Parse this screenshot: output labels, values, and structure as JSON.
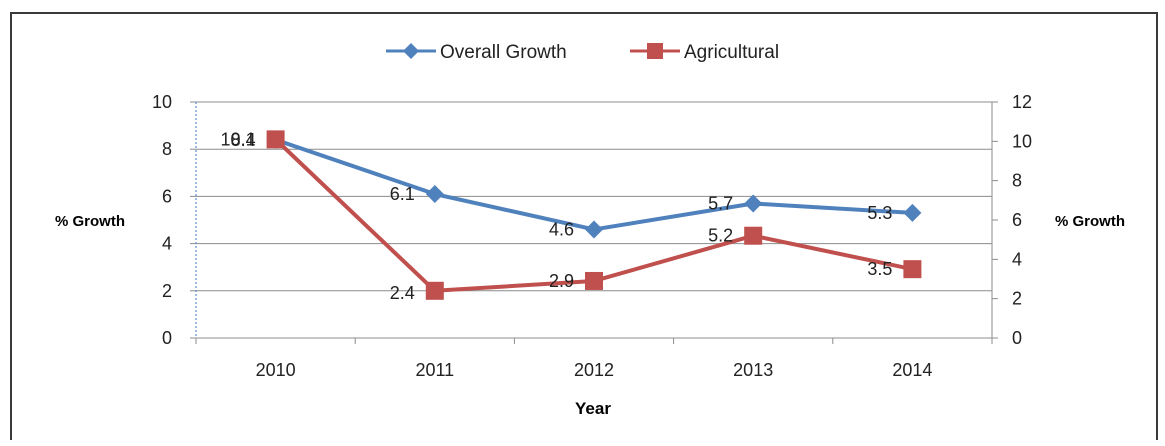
{
  "chart_data": {
    "type": "line",
    "categories": [
      "2010",
      "2011",
      "2012",
      "2013",
      "2014"
    ],
    "series": [
      {
        "name": "Overall Growth",
        "axis": "left",
        "color": "#4F81BD",
        "marker": "diamond",
        "values": [
          8.4,
          6.1,
          4.6,
          5.7,
          5.3
        ],
        "labels": [
          "8.4",
          "6.1",
          "4.6",
          "5.7",
          "5.3"
        ]
      },
      {
        "name": "Agricultural",
        "axis": "right",
        "color": "#C0504D",
        "marker": "square",
        "values": [
          10.1,
          2.4,
          2.9,
          5.2,
          3.5
        ],
        "labels": [
          "10.1",
          "2.4",
          "2.9",
          "5.2",
          "3.5"
        ]
      }
    ],
    "xlabel": "Year",
    "ylabel_left": "% Growth",
    "ylabel_right": "% Growth",
    "ylim_left": [
      0,
      10
    ],
    "yticks_left": [
      "0",
      "2",
      "4",
      "6",
      "8",
      "10"
    ],
    "ylim_right": [
      0,
      12
    ],
    "yticks_right": [
      "0",
      "2",
      "4",
      "6",
      "8",
      "10",
      "12"
    ],
    "grid": true,
    "legend_position": "top"
  }
}
